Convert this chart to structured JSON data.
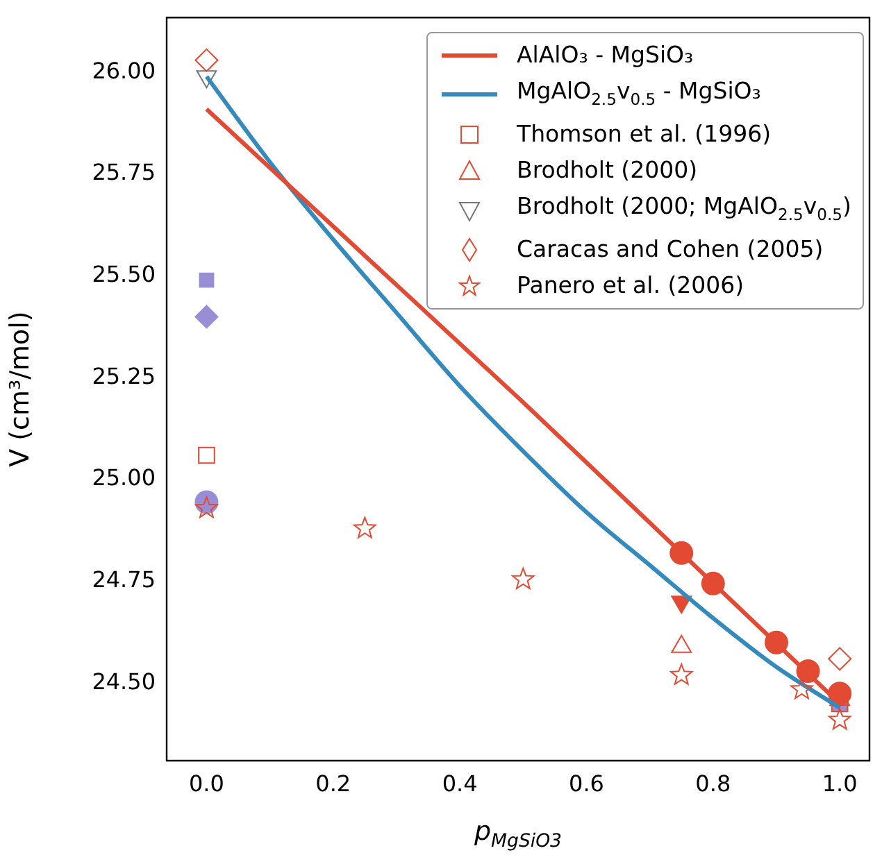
{
  "chart_data": {
    "type": "scatter",
    "xlabel": "p$_{MgSiO3}$",
    "ylabel": "V (cm³/mol)",
    "xlim": [
      -0.063,
      1.047
    ],
    "ylim": [
      24.31,
      26.135
    ],
    "xticks": [
      {
        "value": 0,
        "label": "0.0"
      },
      {
        "value": 0.2,
        "label": "0.2"
      },
      {
        "value": 0.4,
        "label": "0.4"
      },
      {
        "value": 0.6,
        "label": "0.6"
      },
      {
        "value": 0.8,
        "label": "0.8"
      },
      {
        "value": 1,
        "label": "1.0"
      }
    ],
    "yticks": [
      {
        "value": 24.5,
        "label": "24.50"
      },
      {
        "value": 24.75,
        "label": "24.75"
      },
      {
        "value": 25,
        "label": "25.00"
      },
      {
        "value": 25.25,
        "label": "25.25"
      },
      {
        "value": 25.5,
        "label": "25.50"
      },
      {
        "value": 25.75,
        "label": "25.75"
      },
      {
        "value": 26,
        "label": "26.00"
      }
    ],
    "grid": false,
    "legend": "top right",
    "series": [
      {
        "name": "AlAlO₃ - MgSiO₃",
        "type": "line",
        "color": "#e24a33",
        "marker": "none",
        "x": [
          0,
          0.25,
          0.5,
          0.75,
          1
        ],
        "values": [
          25.91,
          25.55,
          25.19,
          24.82,
          24.45
        ]
      },
      {
        "name": "MgAlO$_{2.5}$v$_{0.5}$ - MgSiO₃",
        "type": "line",
        "color": "#348abd",
        "marker": "none",
        "x": [
          0,
          0.1,
          0.2,
          0.3,
          0.4,
          0.5,
          0.6,
          0.7,
          0.8,
          0.9,
          1
        ],
        "values": [
          25.99,
          25.78,
          25.59,
          25.41,
          25.23,
          25.07,
          24.92,
          24.79,
          24.66,
          24.54,
          24.44
        ]
      },
      {
        "name": "Thomson et al. (1996)",
        "color": "#e24a33",
        "marker": "square",
        "x": [
          0,
          1
        ],
        "values": [
          25.06,
          24.45
        ]
      },
      {
        "name": "Brodholt (2000)",
        "color": "#e24a33",
        "marker": "triangle",
        "x": [
          0.75,
          1
        ],
        "values": [
          24.59,
          24.46
        ]
      },
      {
        "name": "Brodholt (2000; MgAlO$_{2.5}$v$_{0.5}$)",
        "color": "#777777",
        "marker": "triangle-down",
        "x": [
          0
        ],
        "values": [
          25.99
        ]
      },
      {
        "name": "Caracas and Cohen (2005)",
        "color": "#e24a33",
        "marker": "diamond",
        "x": [
          0,
          1
        ],
        "values": [
          26.03,
          24.56
        ]
      },
      {
        "name": "Panero et al. (2006)",
        "color": "#e24a33",
        "marker": "star",
        "x": [
          0,
          0.25,
          0.5,
          0.75,
          0.94,
          1
        ],
        "values": [
          24.93,
          24.88,
          24.755,
          24.52,
          24.485,
          24.41
        ]
      },
      {
        "color": "#e24a33",
        "marker": "circle",
        "x": [
          0.75,
          0.8,
          0.9,
          0.95,
          1
        ],
        "values": [
          24.82,
          24.745,
          24.6,
          24.53,
          24.475
        ]
      },
      {
        "color": "#e24a33",
        "marker": "triangle-down",
        "x": [
          0.75
        ],
        "values": [
          24.7
        ]
      },
      {
        "color": "#988ed5",
        "marker": "square",
        "x": [
          0,
          1
        ],
        "values": [
          25.49,
          24.45
        ]
      },
      {
        "color": "#988ed5",
        "marker": "diamond",
        "x": [
          0
        ],
        "values": [
          25.4
        ]
      },
      {
        "color": "#988ed5",
        "marker": "circle",
        "x": [
          0
        ],
        "values": [
          24.945
        ]
      }
    ]
  }
}
